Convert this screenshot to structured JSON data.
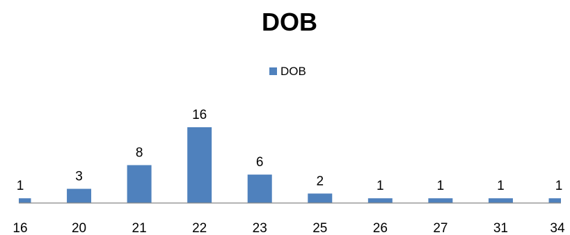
{
  "chart_data": {
    "type": "bar",
    "title": "DOB",
    "legend": {
      "position": "top",
      "entries": [
        "DOB"
      ]
    },
    "categories": [
      "16",
      "20",
      "21",
      "22",
      "23",
      "25",
      "26",
      "27",
      "31",
      "34"
    ],
    "series": [
      {
        "name": "DOB",
        "values": [
          1,
          3,
          8,
          16,
          6,
          2,
          1,
          1,
          1,
          1
        ],
        "color": "#4F81BD"
      }
    ],
    "data_labels": true,
    "grid": false,
    "ylim": [
      0,
      16
    ]
  }
}
